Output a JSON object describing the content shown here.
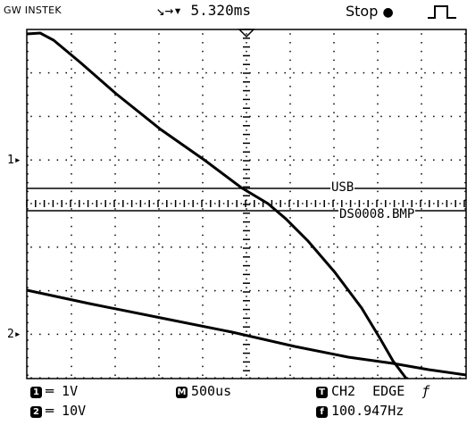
{
  "header": {
    "brand": "GW INSTEK",
    "time_position": "↘→▾ 5.320ms",
    "run_state": "Stop",
    "trigger_icon": "rising-edge-pulse-icon"
  },
  "markers": {
    "ch1": "1▸",
    "ch2": "2▸"
  },
  "overlay": {
    "usb_label": "USB",
    "file_label": "DS0008.BMP"
  },
  "footer": {
    "ch1_num": "1",
    "ch1_scale": "═ 1V",
    "ch2_num": "2",
    "ch2_scale": "═ 10V",
    "timebase_icon": "M",
    "timebase": "500us",
    "trigger_src_icon": "T",
    "trigger_source": "CH2",
    "trigger_type": "EDGE",
    "trigger_slope": "ƒ",
    "freq_icon": "f",
    "frequency": "100.947Hz"
  },
  "colors": {
    "background": "#ffffff",
    "trace": "#000000",
    "grid": "#000000"
  }
}
